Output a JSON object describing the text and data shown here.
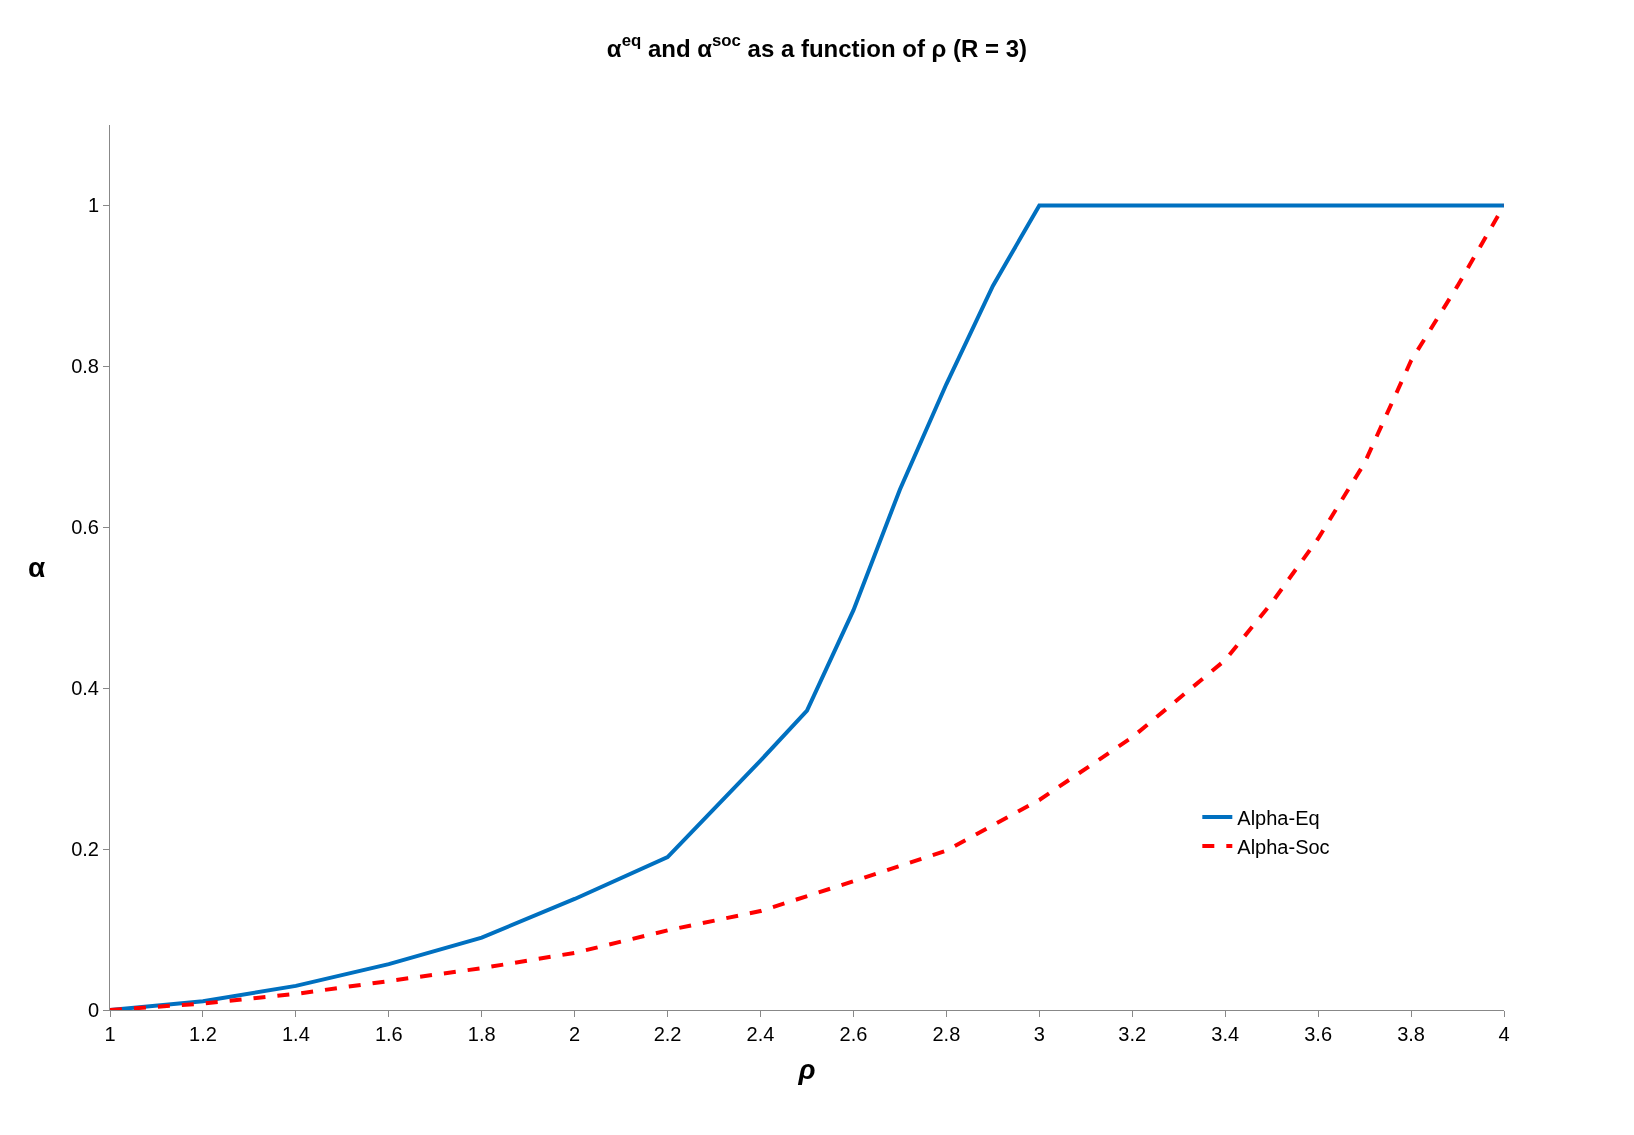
{
  "chart_data": {
    "type": "line",
    "title": "α$^{eq}$ and α$^{soc}$ as a function of ρ (R = 3)",
    "xlabel": "ρ",
    "ylabel": "α",
    "xlim": [
      1,
      4
    ],
    "xticks": [
      1,
      1.2,
      1.4,
      1.6,
      1.8,
      2,
      2.2,
      2.4,
      2.6,
      2.8,
      3,
      3.2,
      3.4,
      3.6,
      3.8,
      4
    ],
    "ylim": [
      0,
      1.1
    ],
    "yticks": [
      0,
      0.2,
      0.4,
      0.6,
      0.8,
      1
    ],
    "legend": "bottom right",
    "marker": "none",
    "series": [
      {
        "name": "Alpha-Eq",
        "color": "#0070c0",
        "line_style": "solid",
        "x": [
          1,
          1.2,
          1.4,
          1.6,
          1.8,
          2,
          2.2,
          2.4,
          2.5,
          2.6,
          2.7,
          2.8,
          2.9,
          3,
          3.2,
          3.4,
          3.6,
          3.8,
          4
        ],
        "values": [
          0,
          0.011,
          0.03,
          0.057,
          0.09,
          0.138,
          0.19,
          0.31,
          0.372,
          0.497,
          0.647,
          0.778,
          0.9,
          1,
          1,
          1,
          1,
          1,
          1
        ]
      },
      {
        "name": "Alpha-Soc",
        "color": "#ff0000",
        "line_style": "dashed",
        "x": [
          1,
          1.2,
          1.4,
          1.6,
          1.8,
          2,
          2.2,
          2.4,
          2.6,
          2.8,
          3,
          3.2,
          3.4,
          3.5,
          3.6,
          3.7,
          3.8,
          3.9,
          4
        ],
        "values": [
          0,
          0.008,
          0.02,
          0.036,
          0.052,
          0.071,
          0.099,
          0.123,
          0.16,
          0.198,
          0.261,
          0.339,
          0.435,
          0.506,
          0.586,
          0.68,
          0.807,
          0.9,
          1
        ]
      }
    ]
  }
}
